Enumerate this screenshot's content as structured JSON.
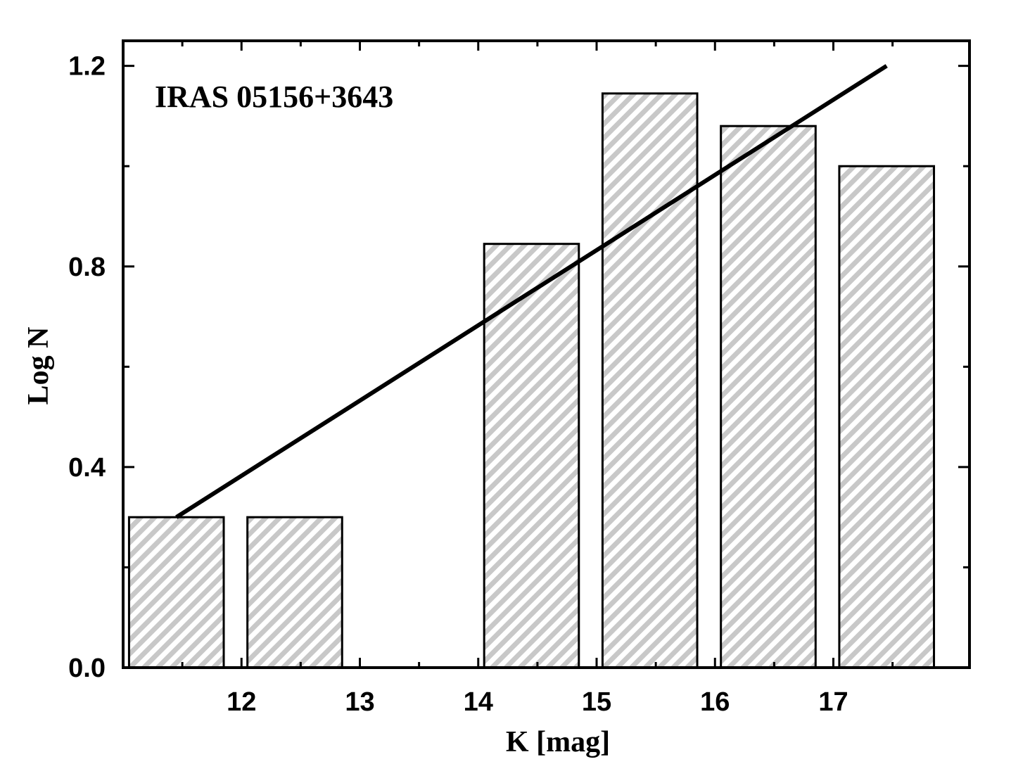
{
  "chart_data": {
    "type": "bar",
    "annotation": "IRAS 05156+3643",
    "xlabel": "K [mag]",
    "ylabel": "Log N",
    "xlim": [
      11.0,
      18.15
    ],
    "ylim": [
      0.0,
      1.25
    ],
    "x_ticks": [
      12,
      13,
      14,
      15,
      16,
      17
    ],
    "y_ticks": [
      0.0,
      0.4,
      0.8,
      1.2
    ],
    "bars": [
      {
        "x_start": 11.05,
        "x_end": 11.85,
        "value": 0.3
      },
      {
        "x_start": 12.05,
        "x_end": 12.85,
        "value": 0.3
      },
      {
        "x_start": 14.05,
        "x_end": 14.85,
        "value": 0.845
      },
      {
        "x_start": 15.05,
        "x_end": 15.85,
        "value": 1.145
      },
      {
        "x_start": 16.05,
        "x_end": 16.85,
        "value": 1.08
      },
      {
        "x_start": 17.05,
        "x_end": 17.85,
        "value": 1.0
      }
    ],
    "fit_line": {
      "x": [
        11.45,
        17.45
      ],
      "y": [
        0.3,
        1.2
      ]
    },
    "grid": false,
    "bar_fill": "#c8c8c8",
    "hatch": "diagonal"
  }
}
